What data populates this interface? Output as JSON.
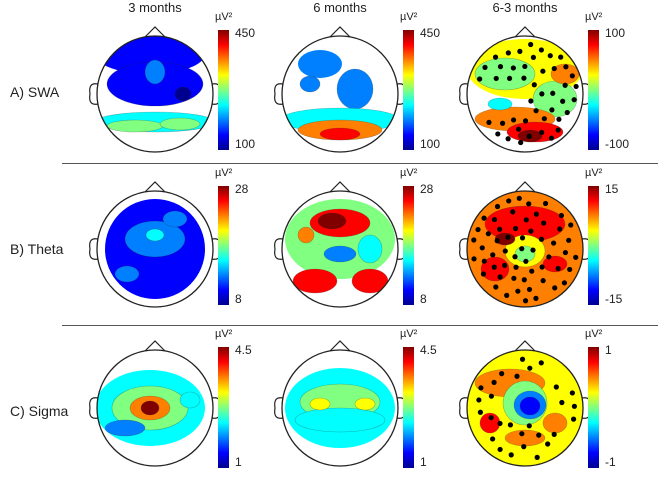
{
  "figure": {
    "columns": [
      "3 months",
      "6 months",
      "6-3 months"
    ],
    "rows": [
      {
        "label": "A) SWA",
        "unit": "µV²",
        "scales": [
          {
            "max": "450",
            "min": "100"
          },
          {
            "max": "450",
            "min": "100"
          },
          {
            "max": "100",
            "min": "-100"
          }
        ]
      },
      {
        "label": "B) Theta",
        "unit": "µV²",
        "scales": [
          {
            "max": "28",
            "min": "8"
          },
          {
            "max": "28",
            "min": "8"
          },
          {
            "max": "15",
            "min": "-15"
          }
        ]
      },
      {
        "label": "C) Sigma",
        "unit": "µV²",
        "scales": [
          {
            "max": "4.5",
            "min": "1"
          },
          {
            "max": "4.5",
            "min": "1"
          },
          {
            "max": "1",
            "min": "-1"
          }
        ]
      }
    ]
  },
  "colormap": [
    "#00008f",
    "#0000ff",
    "#0080ff",
    "#00ffff",
    "#80ff80",
    "#ffff00",
    "#ff8000",
    "#ff0000",
    "#800000"
  ]
}
